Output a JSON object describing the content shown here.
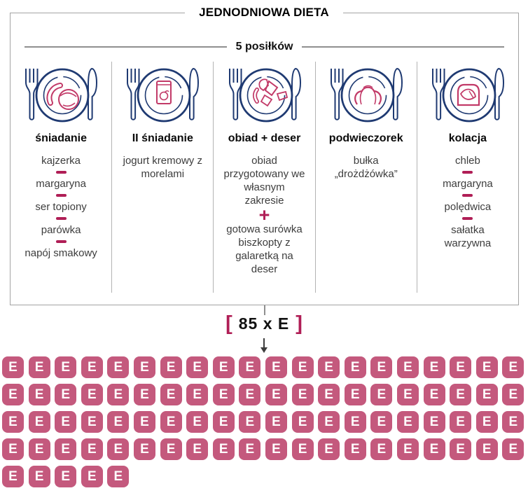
{
  "title": "JEDNODNIOWA DIETA",
  "subtitle": "5 posiłków",
  "meals": [
    {
      "name": "śniadanie",
      "icon": "plate-roll-sausage-icon",
      "separator": "dash",
      "items": [
        "kajzerka",
        "margaryna",
        "ser topiony",
        "parówka",
        "napój smakowy"
      ]
    },
    {
      "name": "II śniadanie",
      "icon": "plate-yogurt-cup-icon",
      "separator": "none",
      "items": [
        "jogurt kremowy z morelami"
      ]
    },
    {
      "name": "obiad + deser",
      "icon": "plate-dinner-icon",
      "separator": "plus",
      "items": [
        "obiad przygotowany we własnym zakresie",
        "gotowa surówka biszkopty z galaretką na deser"
      ]
    },
    {
      "name": "podwieczorek",
      "icon": "plate-croissant-icon",
      "separator": "none",
      "items": [
        "bułka „drożdżówka”"
      ]
    },
    {
      "name": "kolacja",
      "icon": "plate-bread-slice-icon",
      "separator": "dash",
      "items": [
        "chleb",
        "margaryna",
        "polędwica",
        "sałatka warzywna"
      ]
    }
  ],
  "energy": {
    "open_bracket": "[",
    "label": "85 x E",
    "close_bracket": "]",
    "count": 85,
    "per_row": 20,
    "letter": "E"
  },
  "colors": {
    "navy": "#1f3a72",
    "food_line": "#c23a68",
    "accent_crimson": "#b01e56",
    "tile": "#c4597d",
    "line_gray": "#8f8f8f"
  }
}
